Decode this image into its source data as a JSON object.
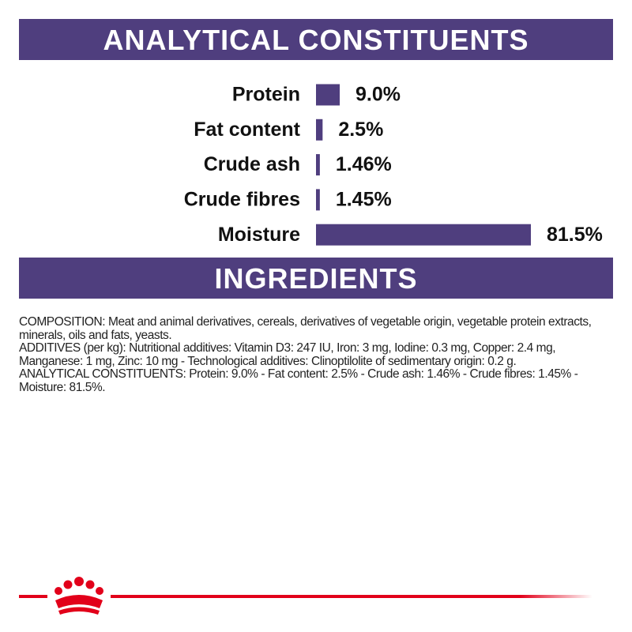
{
  "header": {
    "title": "ANALYTICAL CONSTITUENTS"
  },
  "chart_data": {
    "type": "bar",
    "orientation": "horizontal",
    "categories": [
      "Protein",
      "Fat content",
      "Crude ash",
      "Crude fibres",
      "Moisture"
    ],
    "values": [
      9.0,
      2.5,
      1.46,
      1.45,
      81.5
    ],
    "value_labels": [
      "9.0%",
      "2.5%",
      "1.46%",
      "1.45%",
      "81.5%"
    ],
    "color": "#4f3e7e"
  },
  "ingredients": {
    "title": "INGREDIENTS",
    "paragraphs": [
      "COMPOSITION: Meat and animal derivatives, cereals, derivatives of vegetable origin, vegetable protein extracts, minerals, oils and fats, yeasts.",
      "ADDITIVES (per kg): Nutritional additives: Vitamin D3: 247 IU, Iron: 3 mg, Iodine: 0.3 mg, Copper: 2.4 mg, Manganese: 1 mg, Zinc: 10 mg - Technological additives: Clinoptilolite of sedimentary origin: 0.2 g.",
      "ANALYTICAL CONSTITUENTS: Protein: 9.0% - Fat content: 2.5% - Crude ash: 1.46% - Crude fibres: 1.45% - Moisture: 81.5%."
    ]
  }
}
